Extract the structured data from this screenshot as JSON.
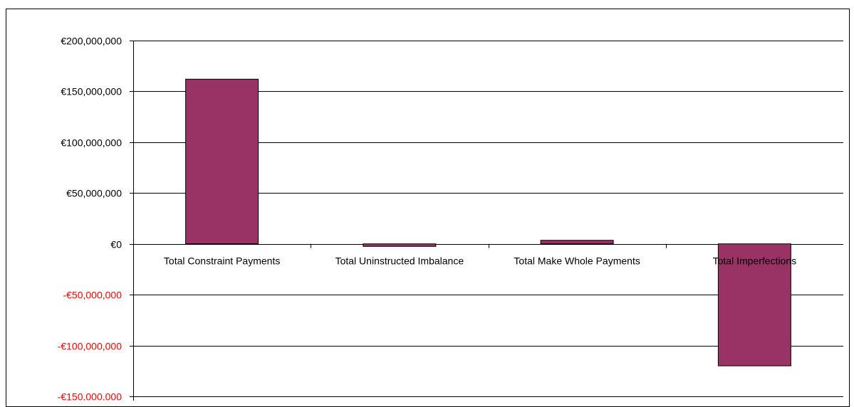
{
  "chart_data": {
    "type": "bar",
    "title": "",
    "xlabel": "",
    "ylabel": "",
    "categories": [
      "Total Constraint Payments",
      "Total Uninstructed Imbalance",
      "Total Make Whole Payments",
      "Total Imperfections"
    ],
    "values": [
      162000000,
      -2500000,
      3500000,
      -120000000
    ],
    "ylim": [
      -150000000,
      200000000
    ],
    "yticks": [
      200000000,
      150000000,
      100000000,
      50000000,
      0,
      -50000000,
      -100000000,
      -150000000
    ],
    "ytick_labels": [
      "€200,000,000",
      "€150,000,000",
      "€100,000,000",
      "€50,000,000",
      "€0",
      "-€50,000,000",
      "-€100,000,000",
      "-€150,000,000"
    ],
    "grid": true,
    "legend": "none",
    "colors": {
      "bar_fill": "#993366",
      "bar_stroke": "#000000",
      "gridline": "#000000",
      "positive_tick_label": "#000000",
      "negative_tick_label": "#ff0000"
    }
  }
}
